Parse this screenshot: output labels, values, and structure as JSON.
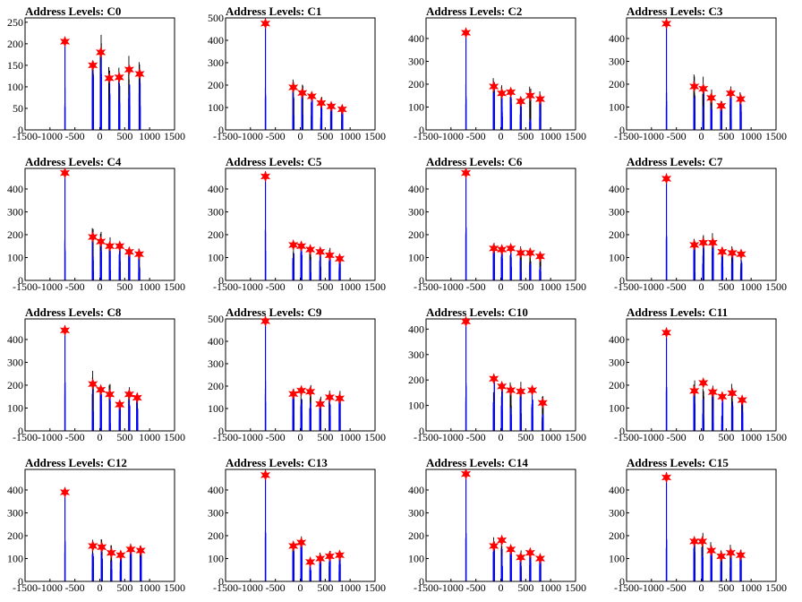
{
  "x_ticks": [
    "-1500",
    "-1000",
    "-500",
    "0",
    "500",
    "1000",
    "1500"
  ],
  "colors": {
    "histogram_primary": "#0000ff",
    "histogram_secondary": "#000000",
    "peak_marker": "#ff0000",
    "axis": "#000000"
  },
  "chart_data": [
    {
      "type": "bar",
      "title": "Address Levels: C0",
      "xlim": [
        -1500,
        1500
      ],
      "ylim": [
        0,
        260
      ],
      "y_ticks": [
        0,
        50,
        100,
        150,
        200,
        250
      ],
      "peaks": [
        {
          "x": -700,
          "y": 205
        },
        {
          "x": -140,
          "y": 150
        },
        {
          "x": 20,
          "y": 180
        },
        {
          "x": 190,
          "y": 120
        },
        {
          "x": 390,
          "y": 122
        },
        {
          "x": 590,
          "y": 140
        },
        {
          "x": 800,
          "y": 130
        }
      ]
    },
    {
      "type": "bar",
      "title": "Address Levels: C1",
      "xlim": [
        -1500,
        1500
      ],
      "ylim": [
        0,
        500
      ],
      "y_ticks": [
        0,
        100,
        200,
        300,
        400,
        500
      ],
      "peaks": [
        {
          "x": -700,
          "y": 475
        },
        {
          "x": -140,
          "y": 190
        },
        {
          "x": 40,
          "y": 165
        },
        {
          "x": 230,
          "y": 150
        },
        {
          "x": 420,
          "y": 120
        },
        {
          "x": 620,
          "y": 105
        },
        {
          "x": 840,
          "y": 92
        }
      ]
    },
    {
      "type": "bar",
      "title": "Address Levels: C2",
      "xlim": [
        -1500,
        1500
      ],
      "ylim": [
        0,
        490
      ],
      "y_ticks": [
        0,
        100,
        200,
        300,
        400
      ],
      "peaks": [
        {
          "x": -700,
          "y": 425
        },
        {
          "x": -140,
          "y": 190
        },
        {
          "x": 20,
          "y": 160
        },
        {
          "x": 200,
          "y": 165
        },
        {
          "x": 400,
          "y": 125
        },
        {
          "x": 590,
          "y": 150
        },
        {
          "x": 790,
          "y": 135
        }
      ]
    },
    {
      "type": "bar",
      "title": "Address Levels: C3",
      "xlim": [
        -1500,
        1500
      ],
      "ylim": [
        0,
        490
      ],
      "y_ticks": [
        0,
        100,
        200,
        300,
        400
      ],
      "peaks": [
        {
          "x": -700,
          "y": 465
        },
        {
          "x": -140,
          "y": 190
        },
        {
          "x": 40,
          "y": 180
        },
        {
          "x": 200,
          "y": 140
        },
        {
          "x": 400,
          "y": 105
        },
        {
          "x": 590,
          "y": 160
        },
        {
          "x": 790,
          "y": 135
        }
      ]
    },
    {
      "type": "bar",
      "title": "Address Levels: C4",
      "xlim": [
        -1500,
        1500
      ],
      "ylim": [
        0,
        490
      ],
      "y_ticks": [
        0,
        100,
        200,
        300,
        400
      ],
      "peaks": [
        {
          "x": -700,
          "y": 470
        },
        {
          "x": -140,
          "y": 190
        },
        {
          "x": 20,
          "y": 170
        },
        {
          "x": 200,
          "y": 150
        },
        {
          "x": 400,
          "y": 150
        },
        {
          "x": 590,
          "y": 125
        },
        {
          "x": 790,
          "y": 115
        }
      ]
    },
    {
      "type": "bar",
      "title": "Address Levels: C5",
      "xlim": [
        -1500,
        1500
      ],
      "ylim": [
        0,
        490
      ],
      "y_ticks": [
        0,
        100,
        200,
        300,
        400
      ],
      "peaks": [
        {
          "x": -700,
          "y": 455
        },
        {
          "x": -140,
          "y": 155
        },
        {
          "x": 20,
          "y": 150
        },
        {
          "x": 200,
          "y": 135
        },
        {
          "x": 400,
          "y": 125
        },
        {
          "x": 590,
          "y": 110
        },
        {
          "x": 790,
          "y": 95
        }
      ]
    },
    {
      "type": "bar",
      "title": "Address Levels: C6",
      "xlim": [
        -1500,
        1500
      ],
      "ylim": [
        0,
        490
      ],
      "y_ticks": [
        0,
        100,
        200,
        300,
        400
      ],
      "peaks": [
        {
          "x": -700,
          "y": 470
        },
        {
          "x": -140,
          "y": 140
        },
        {
          "x": 20,
          "y": 135
        },
        {
          "x": 200,
          "y": 140
        },
        {
          "x": 400,
          "y": 120
        },
        {
          "x": 590,
          "y": 120
        },
        {
          "x": 790,
          "y": 105
        }
      ]
    },
    {
      "type": "bar",
      "title": "Address Levels: C7",
      "xlim": [
        -1500,
        1500
      ],
      "ylim": [
        0,
        490
      ],
      "y_ticks": [
        0,
        100,
        200,
        300,
        400
      ],
      "peaks": [
        {
          "x": -700,
          "y": 445
        },
        {
          "x": -140,
          "y": 155
        },
        {
          "x": 40,
          "y": 165
        },
        {
          "x": 230,
          "y": 165
        },
        {
          "x": 420,
          "y": 125
        },
        {
          "x": 620,
          "y": 120
        },
        {
          "x": 800,
          "y": 115
        }
      ]
    },
    {
      "type": "bar",
      "title": "Address Levels: C8",
      "xlim": [
        -1500,
        1500
      ],
      "ylim": [
        0,
        490
      ],
      "y_ticks": [
        0,
        100,
        200,
        300,
        400
      ],
      "peaks": [
        {
          "x": -700,
          "y": 440
        },
        {
          "x": -140,
          "y": 205
        },
        {
          "x": 20,
          "y": 180
        },
        {
          "x": 200,
          "y": 160
        },
        {
          "x": 400,
          "y": 115
        },
        {
          "x": 590,
          "y": 160
        },
        {
          "x": 750,
          "y": 145
        }
      ]
    },
    {
      "type": "bar",
      "title": "Address Levels: C9",
      "xlim": [
        -1500,
        1500
      ],
      "ylim": [
        0,
        500
      ],
      "y_ticks": [
        0,
        100,
        200,
        300,
        400,
        500
      ],
      "peaks": [
        {
          "x": -700,
          "y": 490
        },
        {
          "x": -140,
          "y": 165
        },
        {
          "x": 20,
          "y": 180
        },
        {
          "x": 200,
          "y": 175
        },
        {
          "x": 400,
          "y": 120
        },
        {
          "x": 590,
          "y": 150
        },
        {
          "x": 790,
          "y": 145
        }
      ]
    },
    {
      "type": "bar",
      "title": "Address Levels: C10",
      "xlim": [
        -1500,
        1500
      ],
      "ylim": [
        0,
        440
      ],
      "y_ticks": [
        0,
        100,
        200,
        300,
        400
      ],
      "peaks": [
        {
          "x": -700,
          "y": 430
        },
        {
          "x": -140,
          "y": 205
        },
        {
          "x": 20,
          "y": 175
        },
        {
          "x": 200,
          "y": 160
        },
        {
          "x": 400,
          "y": 155
        },
        {
          "x": 630,
          "y": 160
        },
        {
          "x": 840,
          "y": 110
        }
      ]
    },
    {
      "type": "bar",
      "title": "Address Levels: C11",
      "xlim": [
        -1500,
        1500
      ],
      "ylim": [
        0,
        490
      ],
      "y_ticks": [
        0,
        100,
        200,
        300,
        400
      ],
      "peaks": [
        {
          "x": -700,
          "y": 430
        },
        {
          "x": -140,
          "y": 175
        },
        {
          "x": 40,
          "y": 210
        },
        {
          "x": 230,
          "y": 170
        },
        {
          "x": 420,
          "y": 150
        },
        {
          "x": 620,
          "y": 165
        },
        {
          "x": 820,
          "y": 135
        }
      ]
    },
    {
      "type": "bar",
      "title": "Address Levels: C12",
      "xlim": [
        -1500,
        1500
      ],
      "ylim": [
        0,
        490
      ],
      "y_ticks": [
        0,
        100,
        200,
        300,
        400
      ],
      "peaks": [
        {
          "x": -700,
          "y": 390
        },
        {
          "x": -140,
          "y": 155
        },
        {
          "x": 40,
          "y": 150
        },
        {
          "x": 230,
          "y": 125
        },
        {
          "x": 420,
          "y": 115
        },
        {
          "x": 620,
          "y": 140
        },
        {
          "x": 820,
          "y": 135
        }
      ]
    },
    {
      "type": "bar",
      "title": "Address Levels: C13",
      "xlim": [
        -1500,
        1500
      ],
      "ylim": [
        0,
        490
      ],
      "y_ticks": [
        0,
        100,
        200,
        300,
        400
      ],
      "peaks": [
        {
          "x": -700,
          "y": 465
        },
        {
          "x": -140,
          "y": 155
        },
        {
          "x": 20,
          "y": 170
        },
        {
          "x": 200,
          "y": 85
        },
        {
          "x": 400,
          "y": 100
        },
        {
          "x": 590,
          "y": 110
        },
        {
          "x": 790,
          "y": 115
        }
      ]
    },
    {
      "type": "bar",
      "title": "Address Levels: C14",
      "xlim": [
        -1500,
        1500
      ],
      "ylim": [
        0,
        490
      ],
      "y_ticks": [
        0,
        100,
        200,
        300,
        400
      ],
      "peaks": [
        {
          "x": -700,
          "y": 470
        },
        {
          "x": -140,
          "y": 155
        },
        {
          "x": 20,
          "y": 180
        },
        {
          "x": 200,
          "y": 140
        },
        {
          "x": 400,
          "y": 105
        },
        {
          "x": 590,
          "y": 125
        },
        {
          "x": 790,
          "y": 100
        }
      ]
    },
    {
      "type": "bar",
      "title": "Address Levels: C15",
      "xlim": [
        -1500,
        1500
      ],
      "ylim": [
        0,
        490
      ],
      "y_ticks": [
        0,
        100,
        200,
        300,
        400
      ],
      "peaks": [
        {
          "x": -700,
          "y": 455
        },
        {
          "x": -140,
          "y": 175
        },
        {
          "x": 20,
          "y": 175
        },
        {
          "x": 200,
          "y": 135
        },
        {
          "x": 400,
          "y": 110
        },
        {
          "x": 590,
          "y": 125
        },
        {
          "x": 790,
          "y": 115
        }
      ]
    }
  ]
}
